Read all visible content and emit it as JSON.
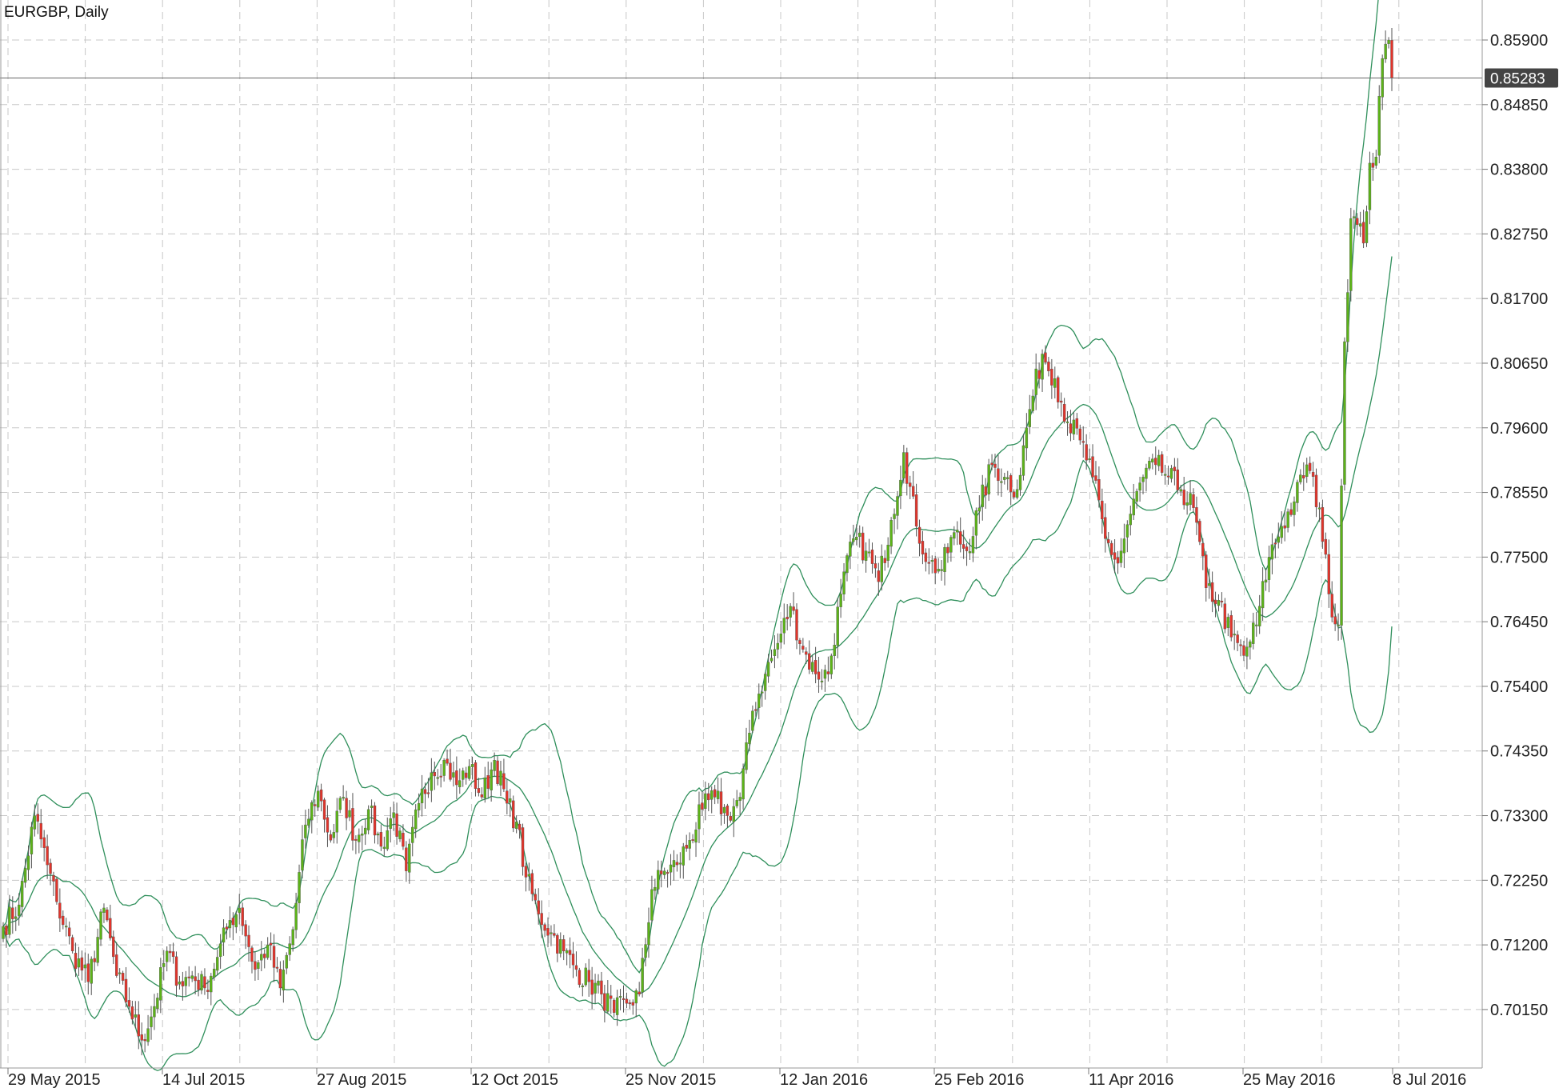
{
  "chart_data": {
    "type": "candlestick",
    "title": "EURGBP, Daily",
    "current_price": 0.85283,
    "current_price_label": "0.85283",
    "y_ticks": [
      "0.85900",
      "0.84850",
      "0.83800",
      "0.82750",
      "0.81700",
      "0.80650",
      "0.79600",
      "0.78550",
      "0.77500",
      "0.76450",
      "0.75400",
      "0.74350",
      "0.73300",
      "0.72250",
      "0.71200",
      "0.70150"
    ],
    "x_ticks": [
      "29 May 2015",
      "14 Jul 2015",
      "27 Aug 2015",
      "12 Oct 2015",
      "25 Nov 2015",
      "12 Jan 2016",
      "25 Feb 2016",
      "11 Apr 2016",
      "25 May 2016",
      "8 Jul 2016"
    ],
    "ylim": [
      0.692,
      0.8655
    ],
    "grid": true,
    "indicator": "Bollinger Bands",
    "colors": {
      "bull": "#5cb318",
      "bear": "#e2342b",
      "wick": "#555555",
      "bands": "#2f8f5b",
      "grid": "#c8c8c8",
      "price_tag": "#444444"
    },
    "close_anchors": [
      [
        0,
        0.715
      ],
      [
        5,
        0.7185
      ],
      [
        10,
        0.733
      ],
      [
        14,
        0.725
      ],
      [
        17,
        0.719
      ],
      [
        22,
        0.711
      ],
      [
        27,
        0.706
      ],
      [
        32,
        0.718
      ],
      [
        36,
        0.707
      ],
      [
        40,
        0.702
      ],
      [
        44,
        0.6965
      ],
      [
        48,
        0.702
      ],
      [
        52,
        0.711
      ],
      [
        56,
        0.706
      ],
      [
        60,
        0.707
      ],
      [
        64,
        0.705
      ],
      [
        68,
        0.71
      ],
      [
        72,
        0.716
      ],
      [
        75,
        0.718
      ],
      [
        80,
        0.708
      ],
      [
        84,
        0.712
      ],
      [
        88,
        0.705
      ],
      [
        92,
        0.7145
      ],
      [
        96,
        0.7315
      ],
      [
        100,
        0.737
      ],
      [
        104,
        0.729
      ],
      [
        108,
        0.736
      ],
      [
        112,
        0.729
      ],
      [
        116,
        0.734
      ],
      [
        120,
        0.728
      ],
      [
        124,
        0.7335
      ],
      [
        128,
        0.724
      ],
      [
        132,
        0.735
      ],
      [
        136,
        0.74
      ],
      [
        140,
        0.742
      ],
      [
        144,
        0.738
      ],
      [
        148,
        0.741
      ],
      [
        152,
        0.736
      ],
      [
        156,
        0.742
      ],
      [
        160,
        0.735
      ],
      [
        163,
        0.732
      ],
      [
        166,
        0.723
      ],
      [
        170,
        0.717
      ],
      [
        174,
        0.714
      ],
      [
        178,
        0.711
      ],
      [
        182,
        0.708
      ],
      [
        186,
        0.706
      ],
      [
        190,
        0.704
      ],
      [
        194,
        0.701
      ],
      [
        198,
        0.7025
      ],
      [
        202,
        0.704
      ],
      [
        206,
        0.721
      ],
      [
        210,
        0.724
      ],
      [
        214,
        0.725
      ],
      [
        218,
        0.729
      ],
      [
        222,
        0.734
      ],
      [
        226,
        0.736
      ],
      [
        230,
        0.733
      ],
      [
        234,
        0.736
      ],
      [
        238,
        0.75
      ],
      [
        242,
        0.756
      ],
      [
        246,
        0.761
      ],
      [
        250,
        0.767
      ],
      [
        254,
        0.76
      ],
      [
        258,
        0.756
      ],
      [
        262,
        0.756
      ],
      [
        266,
        0.769
      ],
      [
        270,
        0.778
      ],
      [
        274,
        0.776
      ],
      [
        278,
        0.771
      ],
      [
        282,
        0.781
      ],
      [
        286,
        0.792
      ],
      [
        290,
        0.78
      ],
      [
        294,
        0.774
      ],
      [
        298,
        0.773
      ],
      [
        302,
        0.779
      ],
      [
        306,
        0.776
      ],
      [
        310,
        0.783
      ],
      [
        314,
        0.79
      ],
      [
        318,
        0.788
      ],
      [
        322,
        0.786
      ],
      [
        326,
        0.799
      ],
      [
        330,
        0.808
      ],
      [
        334,
        0.804
      ],
      [
        338,
        0.797
      ],
      [
        342,
        0.794
      ],
      [
        346,
        0.788
      ],
      [
        350,
        0.778
      ],
      [
        354,
        0.774
      ],
      [
        358,
        0.782
      ],
      [
        362,
        0.788
      ],
      [
        366,
        0.79
      ],
      [
        370,
        0.788
      ],
      [
        374,
        0.786
      ],
      [
        378,
        0.783
      ],
      [
        382,
        0.77
      ],
      [
        386,
        0.768
      ],
      [
        390,
        0.762
      ],
      [
        394,
        0.759
      ],
      [
        398,
        0.764
      ],
      [
        402,
        0.775
      ],
      [
        406,
        0.78
      ],
      [
        410,
        0.784
      ],
      [
        414,
        0.79
      ],
      [
        418,
        0.783
      ],
      [
        421,
        0.769
      ],
      [
        424,
        0.764
      ],
      [
        426,
        0.81
      ],
      [
        428,
        0.83
      ],
      [
        430,
        0.829
      ],
      [
        432,
        0.826
      ],
      [
        434,
        0.839
      ],
      [
        436,
        0.84
      ],
      [
        438,
        0.856
      ],
      [
        440,
        0.859
      ],
      [
        441,
        0.8528
      ]
    ]
  }
}
